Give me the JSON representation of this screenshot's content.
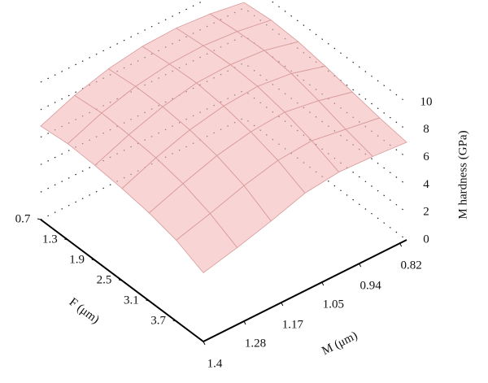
{
  "chart_data": {
    "type": "surface",
    "xlabel": "F (μm)",
    "ylabel": "M (μm)",
    "zlabel": "M hardness (GPa)",
    "x": [
      0.7,
      1.3,
      1.9,
      2.5,
      3.1,
      3.7,
      4.3
    ],
    "y": [
      1.4,
      1.3,
      1.2,
      1.1,
      1.0,
      0.9,
      0.8
    ],
    "z": [
      [
        6.8,
        7.8,
        8.5,
        8.9,
        9.0,
        8.8,
        8.4
      ],
      [
        7.0,
        8.0,
        8.7,
        9.1,
        9.2,
        9.0,
        8.6
      ],
      [
        6.9,
        7.9,
        8.7,
        9.2,
        9.3,
        9.1,
        8.5
      ],
      [
        6.7,
        7.7,
        8.5,
        9.0,
        9.2,
        8.9,
        8.2
      ],
      [
        6.4,
        7.3,
        8.1,
        8.6,
        8.8,
        8.4,
        7.8
      ],
      [
        5.9,
        6.6,
        7.4,
        8.0,
        8.2,
        7.8,
        7.4
      ],
      [
        5.0,
        5.6,
        6.3,
        7.1,
        7.4,
        7.3,
        7.1
      ]
    ],
    "color": "#f4b8b8",
    "xlim": [
      0.7,
      4.3
    ],
    "xticks": [
      0.7,
      1.3,
      1.9,
      2.5,
      3.1,
      3.7
    ],
    "ylim": [
      1.4,
      0.8
    ],
    "yticks": [
      1.4,
      1.28,
      1.17,
      1.05,
      0.94,
      0.82
    ],
    "zlim": [
      0,
      10
    ],
    "zticks": [
      0,
      2,
      4,
      6,
      8,
      10
    ]
  }
}
